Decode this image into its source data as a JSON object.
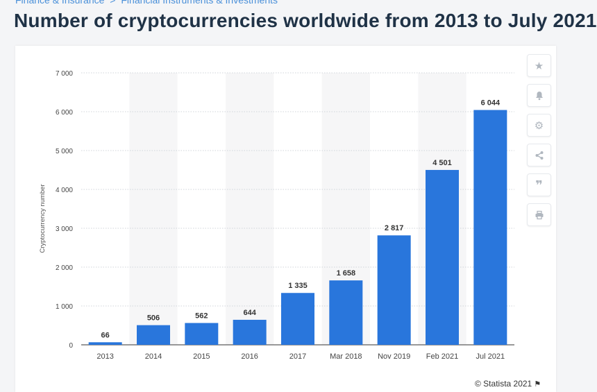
{
  "breadcrumb": [
    "Finance & Insurance",
    ">",
    "Financial Instruments & Investments"
  ],
  "title": "Number of cryptocurrencies worldwide from 2013 to July 2021",
  "credit": "© Statista 2021",
  "toolbar": {
    "icons": [
      "star-icon",
      "bell-icon",
      "gear-icon",
      "share-icon",
      "quote-icon",
      "print-icon"
    ]
  },
  "colors": {
    "bar": "#2976dc",
    "alt_band": "#f6f6f7",
    "grid": "#d0d4d9"
  },
  "chart_data": {
    "type": "bar",
    "categories": [
      "2013",
      "2014",
      "2015",
      "2016",
      "2017",
      "Mar 2018",
      "Nov 2019",
      "Feb 2021",
      "Jul 2021"
    ],
    "values": [
      66,
      506,
      562,
      644,
      1335,
      1658,
      2817,
      4501,
      6044
    ],
    "value_labels": [
      "66",
      "506",
      "562",
      "644",
      "1 335",
      "1 658",
      "2 817",
      "4 501",
      "6 044"
    ],
    "ylabel": "Cryptocurrency number",
    "xlabel": "",
    "ylim": [
      0,
      7000
    ],
    "yticks": [
      0,
      1000,
      2000,
      3000,
      4000,
      5000,
      6000,
      7000
    ],
    "ytick_labels": [
      "0",
      "1 000",
      "2 000",
      "3 000",
      "4 000",
      "5 000",
      "6 000",
      "7 000"
    ],
    "grid": true,
    "legend": "none"
  }
}
